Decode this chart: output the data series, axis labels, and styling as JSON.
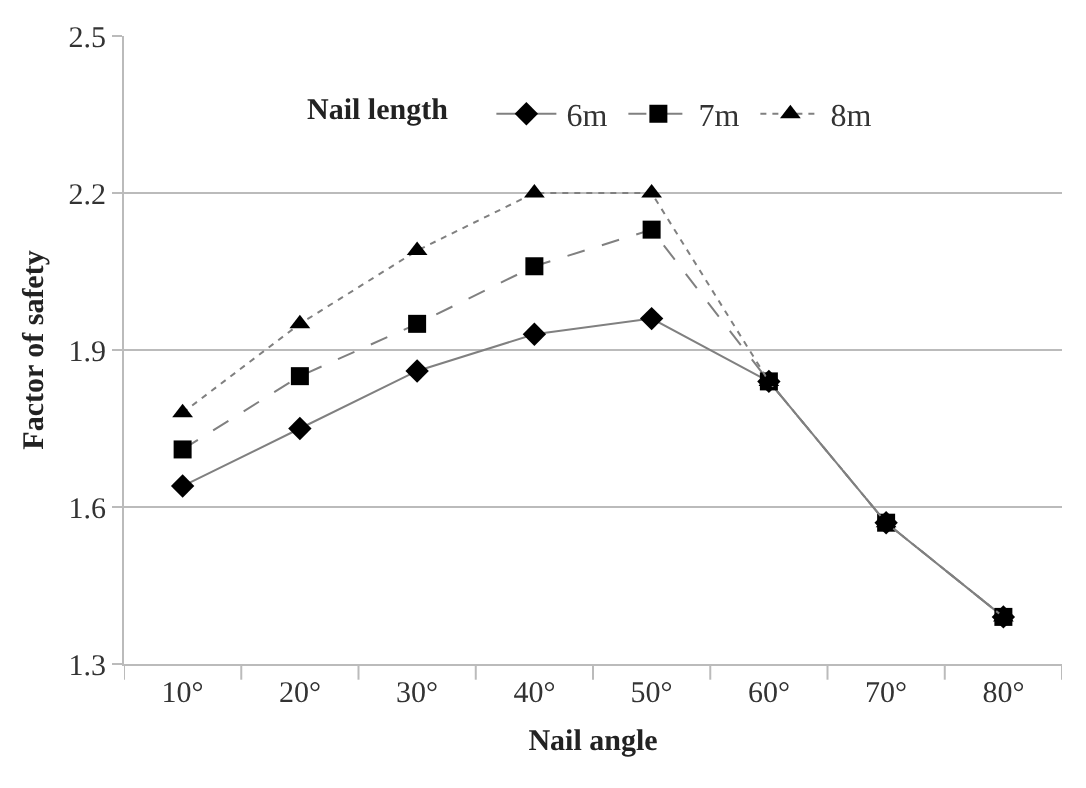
{
  "chart_data": {
    "type": "line",
    "xlabel": "Nail angle",
    "ylabel": "Factor of safety",
    "legend_title": "Nail length",
    "categories": [
      "10°",
      "20°",
      "30°",
      "40°",
      "50°",
      "60°",
      "70°",
      "80°"
    ],
    "series": [
      {
        "name": "6m",
        "color": "#000000",
        "marker": "diamond",
        "line_style": "solid",
        "values": [
          1.64,
          1.75,
          1.86,
          1.93,
          1.96,
          1.84,
          1.57,
          1.39
        ]
      },
      {
        "name": "7m",
        "color": "#000000",
        "marker": "square",
        "line_style": "dashed",
        "values": [
          1.71,
          1.85,
          1.95,
          2.06,
          2.13,
          1.84,
          1.57,
          1.39
        ]
      },
      {
        "name": "8m",
        "color": "#000000",
        "marker": "triangle",
        "line_style": "dotted",
        "values": [
          1.78,
          1.95,
          2.09,
          2.2,
          2.2,
          1.84,
          1.57,
          1.39
        ]
      }
    ],
    "ylim": [
      1.3,
      2.5
    ],
    "yticks": [
      1.3,
      1.6,
      1.9,
      2.2,
      2.5
    ],
    "grid": "y",
    "legend": "top"
  }
}
